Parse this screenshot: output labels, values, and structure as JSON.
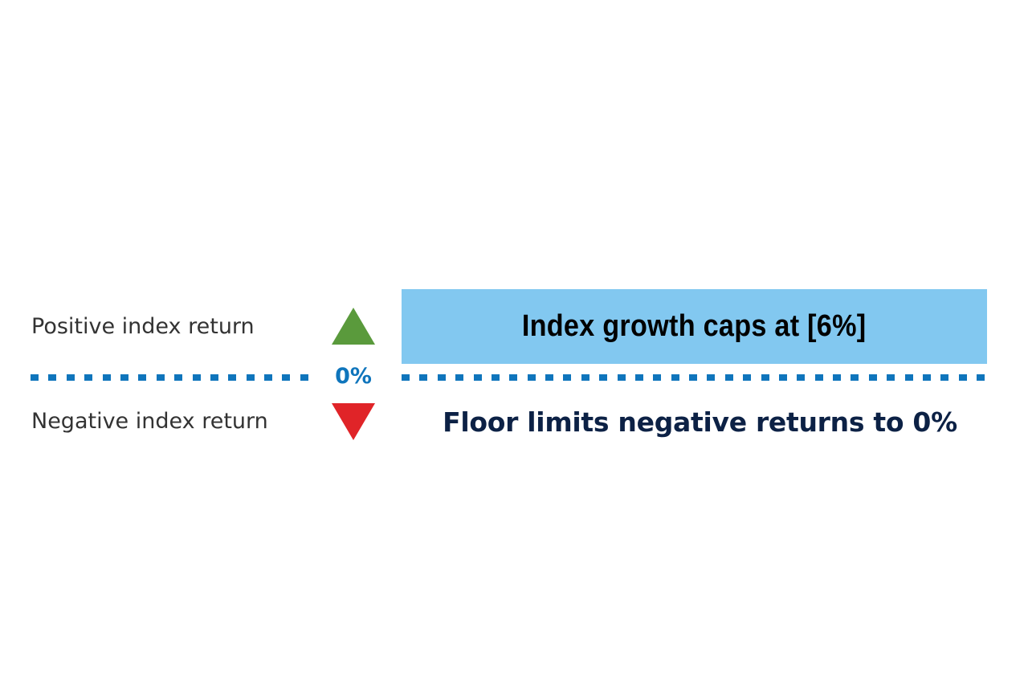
{
  "labels": {
    "positive": "Positive index return",
    "negative": "Negative index return",
    "zero": "0%"
  },
  "cap": {
    "text": "Index growth caps at [6%]"
  },
  "floor": {
    "text": "Floor limits negative returns to 0%"
  },
  "colors": {
    "up_arrow": "#5a9a3c",
    "down_arrow": "#e02428",
    "dots": "#0f75bc",
    "zero_text": "#0f75bc",
    "cap_box": "#82c8f0",
    "floor_text": "#0c2145",
    "label_text": "#333333"
  },
  "icons": {
    "up": "triangle-up-icon",
    "down": "triangle-down-icon"
  }
}
